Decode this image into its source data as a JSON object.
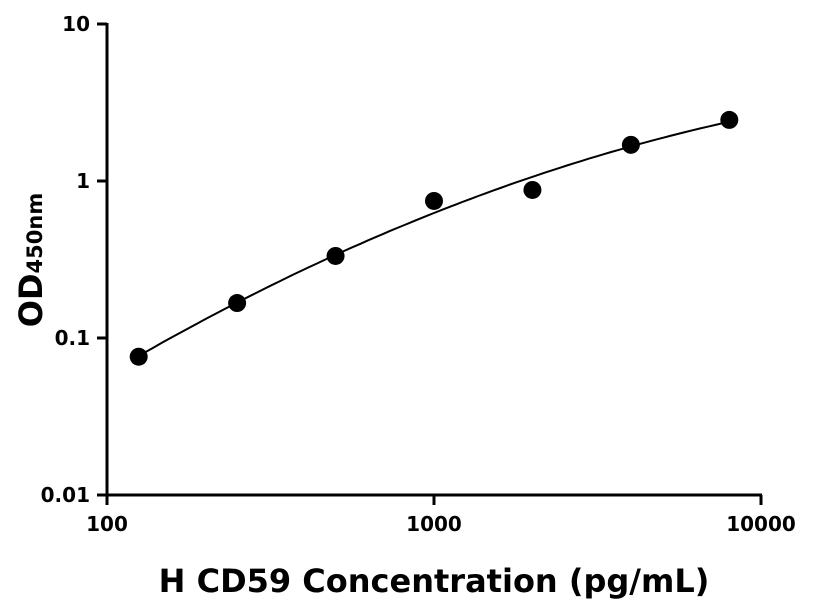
{
  "chart_data": {
    "type": "scatter",
    "title": "",
    "xlabel": "H CD59 Concentration (pg/mL)",
    "ylabel_main": "OD",
    "ylabel_sub": "450nm",
    "x_scale": "log",
    "y_scale": "log",
    "xlim": [
      100,
      10000
    ],
    "ylim": [
      0.01,
      10
    ],
    "x_ticks": [
      "100",
      "1000",
      "10000"
    ],
    "y_ticks": [
      "0.01",
      "0.1",
      "1",
      "10"
    ],
    "grid": false,
    "fit_curve": true,
    "color": "#000000",
    "series": [
      {
        "x": [
          125,
          250,
          500,
          1000,
          2000,
          4000,
          8000
        ],
        "y": [
          0.076,
          0.167,
          0.333,
          0.746,
          0.877,
          1.7,
          2.45
        ]
      }
    ]
  }
}
